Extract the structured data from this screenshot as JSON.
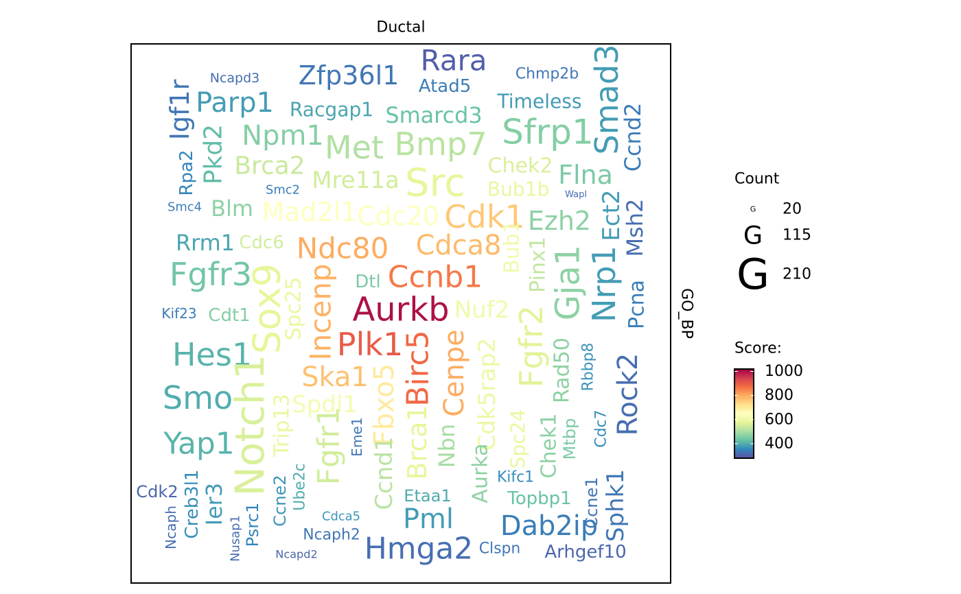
{
  "chart_data": {
    "type": "wordcloud",
    "title": "Ductal",
    "facet_label": "GO_BP",
    "words": [
      "Rara",
      "Zfp36l1",
      "Ncapd3",
      "Chmp2b",
      "Atad5",
      "Igf1r",
      "Parp1",
      "Racgap1",
      "Timeless",
      "Smarcd3",
      "Smad3",
      "Sfrp1",
      "Ccnd2",
      "Npm1",
      "Met",
      "Bmp7",
      "Pkd2",
      "Rpa2",
      "Brca2",
      "Chek2",
      "Flna",
      "Mre11a",
      "Src",
      "Bub1b",
      "Smc2",
      "Wapl",
      "Smc4",
      "Blm",
      "Mad2l1",
      "Cdc20",
      "Cdk1",
      "Ezh2",
      "Ect2",
      "Msh2",
      "Rrm1",
      "Cdc6",
      "Ndc80",
      "Cdca8",
      "Bub1",
      "Pinx1",
      "Gja1",
      "Nrp1",
      "Pcna",
      "Fgfr3",
      "Sox9",
      "Spc25",
      "Incenp",
      "Dtl",
      "Ccnb1",
      "Kif23",
      "Cdt1",
      "Aurkb",
      "Nuf2",
      "Fgfr2",
      "Hes1",
      "Plk1",
      "Birc5",
      "Cenpe",
      "Cdk5rap2",
      "Rad50",
      "Rbbp8",
      "Rock2",
      "Ska1",
      "Smo",
      "Notch1",
      "Trip13",
      "Spdl1",
      "Fgfr1",
      "Fbxo5",
      "Brca1",
      "Nbn",
      "Aurka",
      "Spc24",
      "Chek1",
      "Mtbp",
      "Cdc7",
      "Yap1",
      "Eme1",
      "Ccnd1",
      "Ube2c",
      "Ccne2",
      "Creb3l1",
      "Ier3",
      "Cdk2",
      "Ncaph",
      "Nusap1",
      "Psrc1",
      "Etaa1",
      "Kifc1",
      "Topbp1",
      "Ccne1",
      "Sphk1",
      "Pml",
      "Dab2ip",
      "Cdca5",
      "Ncaph2",
      "Hmga2",
      "Clspn",
      "Arhgef10",
      "Ncapd2"
    ],
    "counts": [
      136,
      121,
      50,
      61,
      76,
      121,
      128,
      84,
      84,
      98,
      151,
      166,
      98,
      128,
      151,
      151,
      113,
      76,
      113,
      91,
      121,
      106,
      188,
      84,
      46,
      28,
      46,
      98,
      121,
      121,
      151,
      121,
      106,
      98,
      98,
      76,
      136,
      128,
      91,
      91,
      158,
      151,
      91,
      151,
      181,
      91,
      136,
      76,
      143,
      54,
      76,
      158,
      106,
      151,
      151,
      151,
      143,
      128,
      106,
      91,
      61,
      128,
      128,
      151,
      195,
      91,
      106,
      143,
      128,
      121,
      98,
      91,
      84,
      91,
      69,
      61,
      143,
      54,
      106,
      61,
      69,
      76,
      98,
      69,
      54,
      46,
      69,
      69,
      61,
      76,
      69,
      106,
      128,
      128,
      46,
      61,
      143,
      61,
      76,
      39
    ],
    "scores": [
      300,
      330,
      320,
      330,
      340,
      330,
      380,
      390,
      380,
      430,
      380,
      460,
      340,
      460,
      510,
      520,
      420,
      350,
      540,
      560,
      450,
      550,
      580,
      590,
      340,
      320,
      340,
      470,
      650,
      650,
      760,
      470,
      380,
      320,
      390,
      550,
      800,
      780,
      610,
      530,
      470,
      380,
      340,
      440,
      580,
      590,
      790,
      450,
      860,
      340,
      460,
      1000,
      610,
      570,
      410,
      900,
      880,
      800,
      600,
      470,
      370,
      320,
      770,
      400,
      560,
      590,
      620,
      550,
      700,
      580,
      500,
      470,
      590,
      470,
      450,
      360,
      410,
      330,
      520,
      400,
      370,
      360,
      380,
      310,
      320,
      320,
      350,
      400,
      360,
      430,
      330,
      330,
      380,
      340,
      370,
      330,
      320,
      330,
      310,
      310
    ],
    "size_legend_title": "Count",
    "size_ticks": [
      20,
      115,
      210
    ],
    "size_key_glyph": "G",
    "color_legend_title": "Score:",
    "scorelim": [
      280,
      1020
    ],
    "scoreticks": [
      400,
      600,
      800,
      1000
    ],
    "palette": [
      "#5e4fa2",
      "#3288bd",
      "#66c2a5",
      "#abdda4",
      "#e6f598",
      "#ffffbf",
      "#fee08b",
      "#fdae61",
      "#f46d43",
      "#d53e4f",
      "#9e0142"
    ]
  }
}
